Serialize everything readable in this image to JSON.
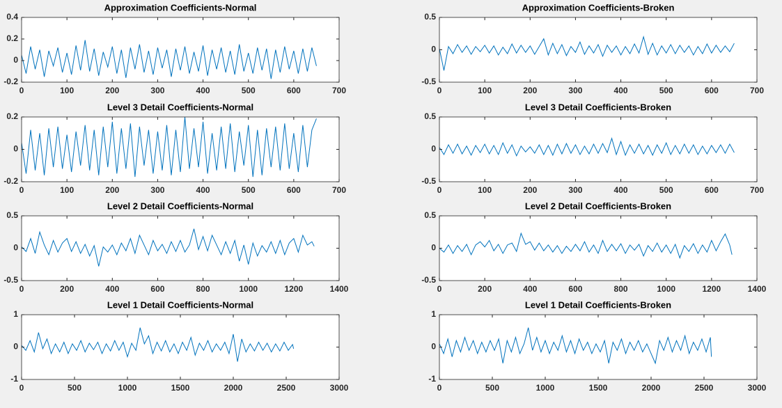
{
  "chart_data": [
    {
      "type": "line",
      "title": "Approximation Coefficients-Normal",
      "color": "#0072bd",
      "grid": false,
      "x": [
        0,
        10,
        20,
        30,
        40,
        50,
        60,
        70,
        80,
        90,
        100,
        110,
        120,
        130,
        140,
        150,
        160,
        170,
        180,
        190,
        200,
        210,
        220,
        230,
        240,
        250,
        260,
        270,
        280,
        290,
        300,
        310,
        320,
        330,
        340,
        350,
        360,
        370,
        380,
        390,
        400,
        410,
        420,
        430,
        440,
        450,
        460,
        470,
        480,
        490,
        500,
        510,
        520,
        530,
        540,
        550,
        560,
        570,
        580,
        590,
        600,
        610,
        620,
        630,
        640,
        650
      ],
      "values": [
        0.05,
        -0.12,
        0.13,
        -0.08,
        0.1,
        -0.15,
        0.09,
        -0.05,
        0.12,
        -0.11,
        0.07,
        -0.13,
        0.14,
        -0.09,
        0.19,
        -0.1,
        0.11,
        -0.14,
        0.08,
        -0.06,
        0.13,
        -0.12,
        0.1,
        -0.16,
        0.12,
        -0.08,
        0.15,
        -0.11,
        0.09,
        -0.13,
        0.12,
        -0.07,
        0.1,
        -0.15,
        0.11,
        -0.09,
        0.13,
        -0.12,
        0.08,
        -0.1,
        0.14,
        -0.14,
        0.1,
        -0.08,
        0.12,
        -0.11,
        0.09,
        -0.13,
        0.15,
        -0.1,
        0.07,
        -0.12,
        0.12,
        -0.09,
        0.11,
        -0.17,
        0.1,
        -0.11,
        0.13,
        -0.08,
        0.09,
        -0.12,
        0.11,
        -0.1,
        0.12,
        -0.05
      ],
      "xlim": [
        0,
        700
      ],
      "xticks": [
        0,
        100,
        200,
        300,
        400,
        500,
        600,
        700
      ],
      "ylim": [
        -0.2,
        0.4
      ],
      "yticks": [
        -0.2,
        0,
        0.2,
        0.4
      ]
    },
    {
      "type": "line",
      "title": "Approximation Coefficients-Broken",
      "color": "#0072bd",
      "grid": false,
      "x": [
        0,
        10,
        20,
        30,
        40,
        50,
        60,
        70,
        80,
        90,
        100,
        110,
        120,
        130,
        140,
        150,
        160,
        170,
        180,
        190,
        200,
        210,
        220,
        230,
        240,
        250,
        260,
        270,
        280,
        290,
        300,
        310,
        320,
        330,
        340,
        350,
        360,
        370,
        380,
        390,
        400,
        410,
        420,
        430,
        440,
        450,
        460,
        470,
        480,
        490,
        500,
        510,
        520,
        530,
        540,
        550,
        560,
        570,
        580,
        590,
        600,
        610,
        620,
        630,
        640,
        650
      ],
      "values": [
        0.02,
        -0.32,
        0.05,
        -0.06,
        0.08,
        -0.04,
        0.06,
        -0.07,
        0.05,
        -0.03,
        0.07,
        -0.05,
        0.06,
        -0.08,
        0.04,
        -0.06,
        0.09,
        -0.05,
        0.07,
        -0.04,
        0.06,
        -0.07,
        0.05,
        0.17,
        -0.08,
        0.1,
        -0.06,
        0.08,
        -0.09,
        0.05,
        -0.04,
        0.12,
        -0.07,
        0.06,
        -0.05,
        0.08,
        -0.1,
        0.07,
        -0.04,
        0.06,
        -0.08,
        0.05,
        -0.06,
        0.09,
        -0.05,
        0.2,
        -0.07,
        0.1,
        -0.08,
        0.06,
        -0.05,
        0.08,
        -0.06,
        0.07,
        -0.04,
        0.06,
        -0.08,
        0.05,
        -0.06,
        0.09,
        -0.05,
        0.07,
        -0.04,
        0.06,
        -0.03,
        0.1
      ],
      "xlim": [
        0,
        700
      ],
      "xticks": [
        0,
        100,
        200,
        300,
        400,
        500,
        600,
        700
      ],
      "ylim": [
        -0.5,
        0.5
      ],
      "yticks": [
        -0.5,
        0,
        0.5
      ]
    },
    {
      "type": "line",
      "title": "Level 3 Detail Coefficients-Normal",
      "color": "#0072bd",
      "grid": false,
      "x": [
        0,
        10,
        20,
        30,
        40,
        50,
        60,
        70,
        80,
        90,
        100,
        110,
        120,
        130,
        140,
        150,
        160,
        170,
        180,
        190,
        200,
        210,
        220,
        230,
        240,
        250,
        260,
        270,
        280,
        290,
        300,
        310,
        320,
        330,
        340,
        350,
        360,
        370,
        380,
        390,
        400,
        410,
        420,
        430,
        440,
        450,
        460,
        470,
        480,
        490,
        500,
        510,
        520,
        530,
        540,
        550,
        560,
        570,
        580,
        590,
        600,
        610,
        620,
        630,
        640,
        650
      ],
      "values": [
        0.04,
        -0.15,
        0.12,
        -0.13,
        0.1,
        -0.16,
        0.13,
        -0.11,
        0.14,
        -0.12,
        0.09,
        -0.14,
        0.11,
        -0.1,
        0.15,
        -0.13,
        0.12,
        -0.16,
        0.14,
        -0.11,
        0.17,
        -0.15,
        0.13,
        -0.12,
        0.16,
        -0.17,
        0.14,
        -0.1,
        0.12,
        -0.15,
        0.11,
        -0.13,
        0.15,
        -0.16,
        0.12,
        -0.14,
        0.2,
        -0.12,
        0.13,
        -0.11,
        0.17,
        -0.15,
        0.1,
        -0.13,
        0.14,
        -0.12,
        0.16,
        -0.14,
        0.11,
        -0.1,
        0.15,
        -0.17,
        0.12,
        -0.16,
        0.13,
        -0.11,
        0.14,
        -0.13,
        0.16,
        -0.12,
        0.1,
        -0.14,
        0.15,
        -0.11,
        0.12,
        0.19
      ],
      "xlim": [
        0,
        700
      ],
      "xticks": [
        0,
        100,
        200,
        300,
        400,
        500,
        600,
        700
      ],
      "ylim": [
        -0.2,
        0.2
      ],
      "yticks": [
        -0.2,
        0,
        0.2
      ]
    },
    {
      "type": "line",
      "title": "Level 3 Detail Coefficients-Broken",
      "color": "#0072bd",
      "grid": false,
      "x": [
        0,
        10,
        20,
        30,
        40,
        50,
        60,
        70,
        80,
        90,
        100,
        110,
        120,
        130,
        140,
        150,
        160,
        170,
        180,
        190,
        200,
        210,
        220,
        230,
        240,
        250,
        260,
        270,
        280,
        290,
        300,
        310,
        320,
        330,
        340,
        350,
        360,
        370,
        380,
        390,
        400,
        410,
        420,
        430,
        440,
        450,
        460,
        470,
        480,
        490,
        500,
        510,
        520,
        530,
        540,
        550,
        560,
        570,
        580,
        590,
        600,
        610,
        620,
        630,
        640,
        650
      ],
      "values": [
        0.03,
        -0.08,
        0.07,
        -0.06,
        0.08,
        -0.07,
        0.05,
        -0.09,
        0.06,
        -0.05,
        0.08,
        -0.07,
        0.06,
        -0.08,
        0.1,
        -0.06,
        0.07,
        -0.1,
        0.05,
        -0.04,
        0.04,
        -0.06,
        0.07,
        -0.08,
        0.06,
        -0.09,
        0.08,
        -0.07,
        0.09,
        -0.06,
        0.07,
        -0.08,
        0.05,
        -0.07,
        0.08,
        -0.06,
        0.09,
        -0.05,
        0.17,
        -0.08,
        0.12,
        -0.09,
        0.07,
        -0.06,
        0.08,
        -0.07,
        0.06,
        -0.09,
        0.07,
        -0.06,
        0.1,
        -0.08,
        0.06,
        -0.07,
        0.08,
        -0.06,
        0.07,
        -0.08,
        0.05,
        -0.07,
        0.06,
        -0.05,
        0.07,
        -0.06,
        0.08,
        -0.05
      ],
      "xlim": [
        0,
        700
      ],
      "xticks": [
        0,
        100,
        200,
        300,
        400,
        500,
        600,
        700
      ],
      "ylim": [
        -0.5,
        0.5
      ],
      "yticks": [
        -0.5,
        0,
        0.5
      ]
    },
    {
      "type": "line",
      "title": "Level 2 Detail Coefficients-Normal",
      "color": "#0072bd",
      "grid": false,
      "x": [
        0,
        20,
        40,
        60,
        80,
        100,
        120,
        140,
        160,
        180,
        200,
        220,
        240,
        260,
        280,
        300,
        320,
        340,
        360,
        380,
        400,
        420,
        440,
        460,
        480,
        500,
        520,
        540,
        560,
        580,
        600,
        620,
        640,
        660,
        680,
        700,
        720,
        740,
        760,
        780,
        800,
        820,
        840,
        860,
        880,
        900,
        920,
        940,
        960,
        980,
        1000,
        1020,
        1040,
        1060,
        1080,
        1100,
        1120,
        1140,
        1160,
        1180,
        1200,
        1220,
        1240,
        1260,
        1280,
        1290
      ],
      "values": [
        0.02,
        -0.05,
        0.15,
        -0.08,
        0.25,
        0.05,
        -0.1,
        0.12,
        -0.06,
        0.08,
        0.15,
        -0.05,
        0.1,
        -0.08,
        0.06,
        -0.12,
        0.04,
        -0.28,
        0.02,
        -0.06,
        0.05,
        -0.1,
        0.08,
        -0.04,
        0.15,
        -0.08,
        0.2,
        0.05,
        -0.1,
        0.12,
        -0.04,
        0.06,
        -0.08,
        0.1,
        -0.05,
        0.12,
        -0.06,
        0.05,
        0.3,
        -0.02,
        0.18,
        -0.04,
        0.2,
        0.05,
        -0.1,
        0.1,
        -0.08,
        0.12,
        -0.2,
        0.05,
        -0.25,
        0.08,
        -0.12,
        0.04,
        -0.06,
        0.1,
        -0.08,
        0.12,
        -0.1,
        0.08,
        0.15,
        -0.06,
        0.2,
        0.05,
        0.1,
        0.03
      ],
      "xlim": [
        0,
        1400
      ],
      "xticks": [
        0,
        200,
        400,
        600,
        800,
        1000,
        1200,
        1400
      ],
      "ylim": [
        -0.5,
        0.5
      ],
      "yticks": [
        -0.5,
        0,
        0.5
      ]
    },
    {
      "type": "line",
      "title": "Level 2 Detail Coefficients-Broken",
      "color": "#0072bd",
      "grid": false,
      "x": [
        0,
        20,
        40,
        60,
        80,
        100,
        120,
        140,
        160,
        180,
        200,
        220,
        240,
        260,
        280,
        300,
        320,
        340,
        360,
        380,
        400,
        420,
        440,
        460,
        480,
        500,
        520,
        540,
        560,
        580,
        600,
        620,
        640,
        660,
        680,
        700,
        720,
        740,
        760,
        780,
        800,
        820,
        840,
        860,
        880,
        900,
        920,
        940,
        960,
        980,
        1000,
        1020,
        1040,
        1060,
        1080,
        1100,
        1120,
        1140,
        1160,
        1180,
        1200,
        1220,
        1240,
        1260,
        1280,
        1290
      ],
      "values": [
        0.0,
        -0.06,
        0.05,
        -0.08,
        0.04,
        -0.05,
        0.06,
        -0.1,
        0.05,
        0.1,
        0.02,
        0.12,
        -0.04,
        0.06,
        -0.08,
        0.05,
        0.08,
        -0.05,
        0.23,
        0.06,
        0.1,
        -0.03,
        0.08,
        -0.04,
        0.05,
        -0.06,
        0.04,
        -0.08,
        0.03,
        -0.05,
        0.06,
        -0.04,
        0.1,
        -0.06,
        0.05,
        -0.08,
        0.12,
        -0.05,
        0.06,
        -0.04,
        0.07,
        -0.08,
        0.05,
        -0.03,
        0.06,
        -0.12,
        0.04,
        -0.05,
        0.08,
        -0.06,
        0.05,
        -0.08,
        0.06,
        -0.15,
        0.04,
        -0.05,
        0.07,
        -0.08,
        0.05,
        -0.06,
        0.12,
        -0.04,
        0.1,
        0.22,
        0.05,
        -0.1
      ],
      "xlim": [
        0,
        1400
      ],
      "xticks": [
        0,
        200,
        400,
        600,
        800,
        1000,
        1200,
        1400
      ],
      "ylim": [
        -0.5,
        0.5
      ],
      "yticks": [
        -0.5,
        0,
        0.5
      ]
    },
    {
      "type": "line",
      "title": "Level 1 Detail Coefficients-Normal",
      "color": "#0072bd",
      "grid": false,
      "x": [
        0,
        40,
        80,
        120,
        160,
        200,
        240,
        280,
        320,
        360,
        400,
        440,
        480,
        520,
        560,
        600,
        640,
        680,
        720,
        760,
        800,
        840,
        880,
        920,
        960,
        1000,
        1040,
        1080,
        1120,
        1160,
        1200,
        1240,
        1280,
        1320,
        1360,
        1400,
        1440,
        1480,
        1520,
        1560,
        1600,
        1640,
        1680,
        1720,
        1760,
        1800,
        1840,
        1880,
        1920,
        1960,
        2000,
        2040,
        2080,
        2120,
        2160,
        2200,
        2240,
        2280,
        2320,
        2360,
        2400,
        2440,
        2480,
        2520,
        2560,
        2570
      ],
      "values": [
        0.05,
        -0.1,
        0.2,
        -0.15,
        0.45,
        -0.05,
        0.25,
        -0.2,
        0.1,
        -0.15,
        0.15,
        -0.2,
        0.1,
        -0.1,
        0.2,
        -0.15,
        0.12,
        -0.08,
        0.15,
        -0.2,
        0.1,
        -0.12,
        0.2,
        -0.1,
        0.15,
        -0.3,
        0.12,
        -0.1,
        0.6,
        0.1,
        0.35,
        -0.2,
        0.15,
        -0.12,
        0.2,
        -0.15,
        0.1,
        -0.2,
        0.15,
        -0.1,
        0.3,
        -0.25,
        0.12,
        -0.1,
        0.2,
        -0.15,
        0.1,
        -0.1,
        0.15,
        -0.2,
        0.4,
        -0.45,
        0.25,
        -0.15,
        0.1,
        -0.12,
        0.15,
        -0.1,
        0.12,
        -0.15,
        0.1,
        -0.12,
        0.15,
        -0.1,
        0.08,
        -0.05
      ],
      "xlim": [
        0,
        3000
      ],
      "xticks": [
        0,
        500,
        1000,
        1500,
        2000,
        2500,
        3000
      ],
      "ylim": [
        -1,
        1
      ],
      "yticks": [
        -1,
        0,
        1
      ]
    },
    {
      "type": "line",
      "title": "Level 1 Detail Coefficients-Broken",
      "color": "#0072bd",
      "grid": false,
      "x": [
        0,
        40,
        80,
        120,
        160,
        200,
        240,
        280,
        320,
        360,
        400,
        440,
        480,
        520,
        560,
        600,
        640,
        680,
        720,
        760,
        800,
        840,
        880,
        920,
        960,
        1000,
        1040,
        1080,
        1120,
        1160,
        1200,
        1240,
        1280,
        1320,
        1360,
        1400,
        1440,
        1480,
        1520,
        1560,
        1600,
        1640,
        1680,
        1720,
        1760,
        1800,
        1840,
        1880,
        1920,
        1960,
        2000,
        2040,
        2080,
        2120,
        2160,
        2200,
        2240,
        2280,
        2320,
        2360,
        2400,
        2440,
        2480,
        2520,
        2560,
        2570
      ],
      "values": [
        0.1,
        -0.2,
        0.25,
        -0.3,
        0.2,
        -0.15,
        0.3,
        -0.1,
        0.2,
        -0.2,
        0.15,
        -0.15,
        0.2,
        -0.1,
        0.25,
        -0.5,
        0.2,
        -0.15,
        0.3,
        -0.2,
        0.1,
        0.6,
        -0.1,
        0.3,
        -0.15,
        0.2,
        -0.2,
        0.15,
        -0.1,
        0.35,
        -0.15,
        0.2,
        -0.2,
        0.25,
        -0.1,
        0.15,
        -0.2,
        0.1,
        -0.15,
        0.2,
        -0.5,
        0.15,
        -0.1,
        0.25,
        -0.2,
        0.15,
        -0.1,
        0.2,
        -0.15,
        0.1,
        -0.2,
        -0.5,
        0.2,
        -0.1,
        0.3,
        -0.15,
        0.2,
        -0.1,
        0.35,
        -0.2,
        0.15,
        -0.1,
        0.25,
        -0.15,
        0.3,
        -0.3
      ],
      "xlim": [
        0,
        3000
      ],
      "xticks": [
        0,
        500,
        1000,
        1500,
        2000,
        2500,
        3000
      ],
      "ylim": [
        -1,
        1
      ],
      "yticks": [
        -1,
        0,
        1
      ]
    }
  ]
}
